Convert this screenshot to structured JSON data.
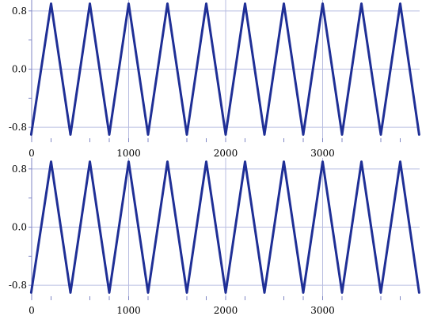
{
  "chart_data": [
    {
      "type": "line",
      "title": "",
      "xlabel": "",
      "ylabel": "",
      "xlim": [
        0,
        4000
      ],
      "ylim": [
        -0.95,
        0.95
      ],
      "x_ticks": [
        0,
        1000,
        2000,
        3000
      ],
      "x_minor_ticks": [
        200,
        600,
        800,
        1200,
        1600,
        1800,
        2200,
        2600,
        2800,
        3200,
        3600,
        3800
      ],
      "y_ticks": [
        0.8,
        0.0,
        -0.8
      ],
      "y_tick_labels": [
        "0.8",
        "0.0",
        "-0.8"
      ],
      "y_minor_ticks": [
        0.4,
        -0.4
      ],
      "grid": true,
      "line_color": "#1f2f96",
      "series": [
        {
          "x": [
            -5,
            200,
            400,
            600,
            800,
            1000,
            1200,
            1400,
            1600,
            1800,
            2000,
            2200,
            2400,
            2600,
            2800,
            3000,
            3200,
            3400,
            3600,
            3800,
            3995
          ],
          "y": [
            -0.9,
            0.9,
            -0.9,
            0.9,
            -0.9,
            0.9,
            -0.9,
            0.9,
            -0.9,
            0.9,
            -0.9,
            0.9,
            -0.9,
            0.9,
            -0.9,
            0.9,
            -0.9,
            0.9,
            -0.9,
            0.9,
            -0.9
          ]
        }
      ]
    },
    {
      "type": "line",
      "title": "",
      "xlabel": "",
      "ylabel": "",
      "xlim": [
        0,
        4000
      ],
      "ylim": [
        -0.95,
        0.95
      ],
      "x_ticks": [
        0,
        1000,
        2000,
        3000
      ],
      "x_minor_ticks": [
        200,
        600,
        800,
        1200,
        1600,
        1800,
        2200,
        2600,
        2800,
        3200,
        3600,
        3800
      ],
      "y_ticks": [
        0.8,
        0.0,
        -0.8
      ],
      "y_tick_labels": [
        "0.8",
        "0.0",
        "-0.8"
      ],
      "y_minor_ticks": [
        0.4,
        -0.4
      ],
      "grid": true,
      "line_color": "#1f2f96",
      "series": [
        {
          "x": [
            -5,
            200,
            400,
            600,
            800,
            1000,
            1200,
            1400,
            1600,
            1800,
            2000,
            2200,
            2400,
            2600,
            2800,
            3000,
            3200,
            3400,
            3600,
            3800,
            3995
          ],
          "y": [
            -0.9,
            0.9,
            -0.9,
            0.9,
            -0.9,
            0.9,
            -0.9,
            0.9,
            -0.9,
            0.9,
            -0.9,
            0.9,
            -0.9,
            0.9,
            -0.9,
            0.9,
            -0.9,
            0.9,
            -0.9,
            0.9,
            -0.9
          ]
        }
      ]
    }
  ]
}
